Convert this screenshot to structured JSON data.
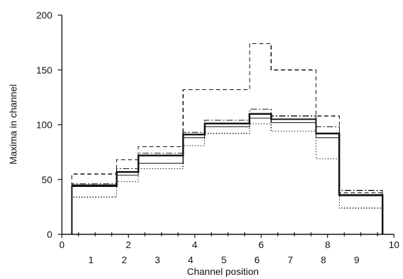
{
  "chart_data": {
    "type": "line",
    "title": "",
    "xlabel": "Channel position",
    "ylabel": "Maxima in channel",
    "xlim": [
      0,
      10
    ],
    "ylim": [
      0,
      200
    ],
    "x_ticks": [
      "0",
      "2",
      "4",
      "6",
      "8",
      "10"
    ],
    "y_ticks": [
      "0",
      "50",
      "100",
      "150",
      "200"
    ],
    "channel_labels": [
      "1",
      "2",
      "3",
      "4",
      "5",
      "6",
      "7",
      "8",
      "9"
    ],
    "channel_label_positions": [
      1,
      2,
      3,
      4,
      5,
      6,
      7,
      8,
      9
    ],
    "channels": [
      {
        "from": 0.3,
        "to": 1.65
      },
      {
        "from": 1.65,
        "to": 2.3
      },
      {
        "from": 2.3,
        "to": 3.65
      },
      {
        "from": 3.65,
        "to": 4.3
      },
      {
        "from": 4.3,
        "to": 5.65
      },
      {
        "from": 5.65,
        "to": 6.3
      },
      {
        "from": 6.3,
        "to": 7.65
      },
      {
        "from": 7.65,
        "to": 8.35
      },
      {
        "from": 8.35,
        "to": 9.65
      }
    ],
    "grid": false,
    "series": [
      {
        "style": "dashed",
        "color": "#111111",
        "values": [
          55,
          68,
          80,
          132,
          132,
          174,
          150,
          108,
          38
        ]
      },
      {
        "style": "dash-dot",
        "color": "#111111",
        "values": [
          46,
          60,
          74,
          93,
          104,
          114,
          108,
          98,
          40
        ]
      },
      {
        "style": "solid-thick",
        "color": "#111111",
        "values": [
          44,
          57,
          72,
          91,
          101,
          110,
          105,
          92,
          36
        ]
      },
      {
        "style": "solid",
        "color": "#111111",
        "values": [
          45,
          54,
          65,
          88,
          98,
          106,
          102,
          88,
          35
        ]
      },
      {
        "style": "dotted",
        "color": "#111111",
        "values": [
          34,
          48,
          60,
          81,
          92,
          101,
          94,
          69,
          24
        ]
      }
    ]
  }
}
